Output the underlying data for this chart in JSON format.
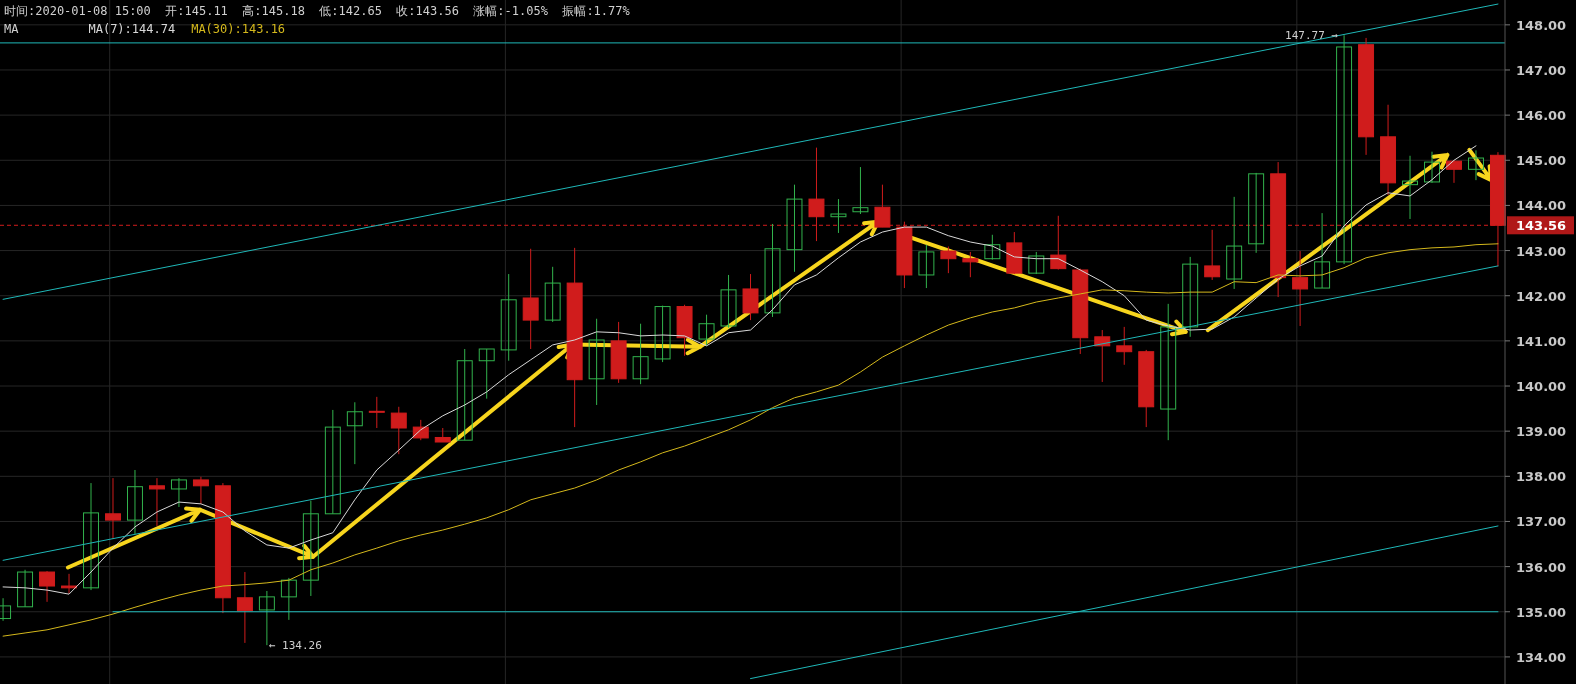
{
  "chart_data": {
    "type": "candlestick",
    "title": "时间:2020-01-08 15:00  开:145.11  高:145.18  低:142.65  收:143.56  涨幅:-1.05%  振幅:1.77%",
    "legend_title": "MA",
    "legend": "top left",
    "tick_labels": "y",
    "grid": true,
    "ylim": [
      133.4,
      148.55
    ],
    "yticks": [
      {
        "value": 134,
        "label": "134.00"
      },
      {
        "value": 135,
        "label": "135.00"
      },
      {
        "value": 136,
        "label": "136.00"
      },
      {
        "value": 137,
        "label": "137.00"
      },
      {
        "value": 138,
        "label": "138.00"
      },
      {
        "value": 139,
        "label": "139.00"
      },
      {
        "value": 140,
        "label": "140.00"
      },
      {
        "value": 141,
        "label": "141.00"
      },
      {
        "value": 142,
        "label": "142.00"
      },
      {
        "value": 143,
        "label": "143.00"
      },
      {
        "value": 144,
        "label": "144.00"
      },
      {
        "value": 145,
        "label": "145.00"
      },
      {
        "value": 146,
        "label": "146.00"
      },
      {
        "value": 147,
        "label": "147.00"
      },
      {
        "value": 148,
        "label": "148.00"
      }
    ],
    "categories": [
      null,
      null,
      null,
      null,
      null,
      null,
      null,
      null,
      null,
      null,
      null,
      null,
      null,
      null,
      null,
      null,
      null,
      null,
      null,
      null,
      null,
      null,
      null,
      null,
      null,
      null,
      null,
      null,
      null,
      null,
      null,
      null,
      null,
      null,
      null,
      null,
      null,
      null,
      null,
      null,
      null,
      null,
      null,
      null,
      null,
      null,
      null,
      null,
      null,
      null,
      null,
      null,
      null,
      null,
      null,
      null,
      null,
      null,
      null,
      null,
      null,
      null,
      null,
      null,
      null,
      null,
      null,
      null,
      null
    ],
    "ohlc": [
      [
        134.85,
        135.3,
        134.8,
        135.13
      ],
      [
        135.11,
        135.93,
        135.11,
        135.88
      ],
      [
        135.88,
        135.9,
        135.22,
        135.57
      ],
      [
        135.57,
        135.84,
        135.4,
        135.53
      ],
      [
        135.53,
        137.85,
        135.48,
        137.19
      ],
      [
        137.17,
        137.96,
        136.61,
        137.03
      ],
      [
        137.03,
        138.14,
        136.72,
        137.77
      ],
      [
        137.79,
        137.96,
        136.9,
        137.72
      ],
      [
        137.72,
        137.96,
        137.32,
        137.92
      ],
      [
        137.92,
        137.99,
        137.39,
        137.79
      ],
      [
        137.79,
        137.85,
        134.97,
        135.31
      ],
      [
        135.31,
        135.88,
        134.31,
        135.02
      ],
      [
        135.04,
        135.46,
        134.26,
        135.33
      ],
      [
        135.33,
        135.75,
        134.82,
        135.7
      ],
      [
        135.7,
        137.46,
        135.35,
        137.17
      ],
      [
        137.17,
        139.47,
        137.17,
        139.09
      ],
      [
        139.12,
        139.64,
        138.27,
        139.43
      ],
      [
        139.44,
        139.76,
        139.07,
        139.42
      ],
      [
        139.4,
        139.54,
        138.49,
        139.07
      ],
      [
        139.09,
        139.25,
        138.8,
        138.85
      ],
      [
        138.86,
        139.07,
        138.76,
        138.76
      ],
      [
        138.8,
        140.82,
        138.8,
        140.56
      ],
      [
        140.56,
        140.82,
        139.72,
        140.82
      ],
      [
        140.8,
        142.48,
        140.56,
        141.91
      ],
      [
        141.95,
        143.04,
        140.82,
        141.46
      ],
      [
        141.46,
        142.64,
        141.42,
        142.28
      ],
      [
        142.28,
        143.06,
        139.09,
        140.14
      ],
      [
        140.16,
        141.49,
        139.58,
        141.02
      ],
      [
        141.0,
        141.42,
        140.07,
        140.16
      ],
      [
        140.16,
        141.38,
        140.04,
        140.65
      ],
      [
        140.6,
        141.78,
        140.53,
        141.76
      ],
      [
        141.76,
        141.8,
        140.67,
        141.07
      ],
      [
        141.04,
        141.58,
        140.89,
        141.38
      ],
      [
        141.33,
        142.46,
        141.29,
        142.13
      ],
      [
        142.15,
        142.48,
        141.46,
        141.62
      ],
      [
        141.62,
        143.59,
        141.53,
        143.04
      ],
      [
        143.02,
        144.46,
        142.53,
        144.14
      ],
      [
        144.14,
        145.28,
        143.21,
        143.75
      ],
      [
        143.75,
        144.14,
        143.39,
        143.81
      ],
      [
        143.86,
        144.85,
        143.81,
        143.95
      ],
      [
        143.96,
        144.46,
        143.52,
        143.52
      ],
      [
        143.52,
        143.64,
        142.17,
        142.46
      ],
      [
        142.46,
        143.13,
        142.17,
        142.97
      ],
      [
        142.99,
        143.09,
        142.5,
        142.82
      ],
      [
        142.82,
        142.97,
        142.41,
        142.75
      ],
      [
        142.82,
        143.35,
        142.8,
        143.13
      ],
      [
        143.17,
        143.41,
        142.48,
        142.5
      ],
      [
        142.5,
        142.97,
        142.48,
        142.88
      ],
      [
        142.9,
        143.77,
        142.58,
        142.6
      ],
      [
        142.57,
        142.6,
        140.71,
        141.07
      ],
      [
        141.09,
        141.24,
        140.09,
        140.89
      ],
      [
        140.89,
        141.31,
        140.47,
        140.76
      ],
      [
        140.76,
        140.8,
        139.09,
        139.54
      ],
      [
        139.49,
        141.82,
        138.8,
        141.31
      ],
      [
        141.31,
        142.86,
        141.09,
        142.7
      ],
      [
        142.66,
        143.46,
        142.35,
        142.42
      ],
      [
        142.37,
        144.19,
        142.15,
        143.1
      ],
      [
        143.15,
        144.72,
        142.95,
        144.7
      ],
      [
        144.7,
        144.96,
        141.97,
        142.4
      ],
      [
        142.4,
        142.99,
        141.33,
        142.15
      ],
      [
        142.17,
        143.83,
        142.17,
        142.75
      ],
      [
        142.75,
        147.77,
        142.7,
        147.51
      ],
      [
        147.56,
        147.71,
        145.12,
        145.52
      ],
      [
        145.52,
        146.23,
        144.23,
        144.5
      ],
      [
        144.46,
        145.1,
        143.7,
        144.54
      ],
      [
        144.52,
        145.19,
        144.5,
        144.96
      ],
      [
        144.98,
        145.0,
        144.5,
        144.8
      ],
      [
        144.8,
        145.22,
        144.56,
        145.05
      ],
      [
        145.11,
        145.18,
        142.65,
        143.56
      ]
    ],
    "colors": [
      "#32b34d",
      "#32b34d",
      "#d01c1c",
      "#d01c1c",
      "#32b34d",
      "#d01c1c",
      "#32b34d",
      "#d01c1c",
      "#32b34d",
      "#d01c1c",
      "#d01c1c",
      "#d01c1c",
      "#32b34d",
      "#32b34d",
      "#32b34d",
      "#32b34d",
      "#32b34d",
      "#d01c1c",
      "#d01c1c",
      "#d01c1c",
      "#d01c1c",
      "#32b34d",
      "#32b34d",
      "#32b34d",
      "#d01c1c",
      "#32b34d",
      "#d01c1c",
      "#32b34d",
      "#d01c1c",
      "#32b34d",
      "#32b34d",
      "#d01c1c",
      "#32b34d",
      "#32b34d",
      "#d01c1c",
      "#32b34d",
      "#32b34d",
      "#d01c1c",
      "#32b34d",
      "#32b34d",
      "#d01c1c",
      "#d01c1c",
      "#32b34d",
      "#d01c1c",
      "#d01c1c",
      "#32b34d",
      "#d01c1c",
      "#32b34d",
      "#d01c1c",
      "#d01c1c",
      "#d01c1c",
      "#d01c1c",
      "#d01c1c",
      "#32b34d",
      "#32b34d",
      "#d01c1c",
      "#32b34d",
      "#32b34d",
      "#d01c1c",
      "#d01c1c",
      "#32b34d",
      "#32b34d",
      "#d01c1c",
      "#d01c1c",
      "#32b34d",
      "#32b34d",
      "#d01c1c",
      "#32b34d",
      "#d01c1c"
    ],
    "series": [
      {
        "type": "line",
        "name": "MA(7):144.74",
        "color": "#d8d8d8",
        "values": [
          135.55,
          135.53,
          135.48,
          135.39,
          135.88,
          136.41,
          136.88,
          137.21,
          137.43,
          137.39,
          137.21,
          136.79,
          136.48,
          136.41,
          136.59,
          136.75,
          137.48,
          138.14,
          138.58,
          139.03,
          139.34,
          139.58,
          139.87,
          140.25,
          140.58,
          140.91,
          141.02,
          141.2,
          141.18,
          141.11,
          141.13,
          141.11,
          140.89,
          141.18,
          141.24,
          141.69,
          142.24,
          142.46,
          142.84,
          143.19,
          143.41,
          143.52,
          143.52,
          143.33,
          143.19,
          143.1,
          142.86,
          142.82,
          142.82,
          142.57,
          142.31,
          142.0,
          141.46,
          141.33,
          141.24,
          141.26,
          141.53,
          141.95,
          142.37,
          142.66,
          142.88,
          143.55,
          144.01,
          144.28,
          144.21,
          144.57,
          145.0,
          145.32,
          null
        ]
      },
      {
        "type": "line",
        "name": "MA(30):143.16",
        "color": "#d4b81c",
        "values": [
          134.46,
          134.53,
          134.6,
          134.71,
          134.82,
          134.95,
          135.1,
          135.24,
          135.37,
          135.48,
          135.57,
          135.6,
          135.64,
          135.7,
          135.93,
          136.08,
          136.26,
          136.41,
          136.57,
          136.7,
          136.81,
          136.94,
          137.08,
          137.26,
          137.48,
          137.61,
          137.74,
          137.92,
          138.14,
          138.32,
          138.52,
          138.67,
          138.85,
          139.03,
          139.25,
          139.52,
          139.74,
          139.87,
          140.02,
          140.31,
          140.64,
          140.89,
          141.13,
          141.35,
          141.51,
          141.64,
          141.73,
          141.86,
          141.95,
          142.04,
          142.13,
          142.11,
          142.08,
          142.06,
          142.08,
          142.08,
          142.31,
          142.29,
          142.46,
          142.44,
          142.46,
          142.62,
          142.84,
          142.95,
          143.02,
          143.06,
          143.08,
          143.13,
          143.15
        ]
      },
      {
        "type": "line",
        "color": "#1fb8b8",
        "values": [
          141.92,
          null,
          null,
          null,
          null,
          null,
          null,
          null,
          null,
          null,
          null,
          null,
          null,
          null,
          null,
          null,
          null,
          null,
          null,
          null,
          null,
          null,
          null,
          null,
          null,
          null,
          null,
          null,
          null,
          null,
          null,
          null,
          null,
          null,
          null,
          null,
          null,
          null,
          null,
          null,
          null,
          null,
          null,
          null,
          null,
          null,
          null,
          null,
          null,
          null,
          null,
          null,
          null,
          null,
          null,
          null,
          null,
          null,
          null,
          null,
          null,
          null,
          null,
          null,
          null,
          null,
          null,
          null,
          148.46
        ]
      },
      {
        "type": "line",
        "color": "#1fb8b8",
        "values": [
          136.14,
          null,
          null,
          null,
          null,
          null,
          null,
          null,
          null,
          null,
          null,
          null,
          null,
          null,
          null,
          null,
          null,
          null,
          null,
          null,
          null,
          null,
          null,
          null,
          null,
          null,
          null,
          null,
          null,
          null,
          null,
          null,
          null,
          null,
          null,
          null,
          null,
          null,
          null,
          null,
          null,
          null,
          null,
          null,
          null,
          null,
          null,
          null,
          null,
          null,
          null,
          null,
          null,
          null,
          null,
          null,
          null,
          null,
          null,
          null,
          null,
          null,
          null,
          null,
          null,
          null,
          null,
          null,
          142.66
        ]
      },
      {
        "type": "line",
        "color": "#1fb8b8",
        "values": [
          null,
          null,
          null,
          null,
          null,
          null,
          null,
          null,
          null,
          null,
          null,
          null,
          null,
          null,
          null,
          null,
          null,
          null,
          null,
          null,
          null,
          null,
          null,
          null,
          null,
          null,
          null,
          null,
          null,
          null,
          null,
          null,
          null,
          null,
          133.52,
          null,
          null,
          null,
          null,
          null,
          null,
          null,
          null,
          null,
          null,
          null,
          null,
          null,
          null,
          null,
          null,
          null,
          null,
          null,
          null,
          null,
          null,
          null,
          null,
          null,
          null,
          null,
          null,
          null,
          null,
          null,
          null,
          null,
          136.9
        ]
      },
      {
        "type": "line",
        "color": "#1fb8b8",
        "values": [
          null,
          null,
          null,
          null,
          null,
          135.0,
          null,
          null,
          null,
          null,
          null,
          null,
          null,
          null,
          null,
          null,
          null,
          null,
          null,
          null,
          null,
          null,
          null,
          null,
          null,
          null,
          null,
          null,
          null,
          null,
          null,
          null,
          null,
          null,
          null,
          null,
          null,
          null,
          null,
          null,
          null,
          null,
          null,
          null,
          null,
          null,
          null,
          null,
          null,
          null,
          null,
          null,
          null,
          null,
          null,
          null,
          null,
          null,
          null,
          null,
          null,
          null,
          null,
          null,
          null,
          null,
          null,
          null,
          135.0
        ]
      }
    ],
    "ref_lines": [
      {
        "axis": "y",
        "value": 147.6,
        "color": "#1fb8b8",
        "line_style": "solid"
      },
      {
        "axis": "y",
        "value": 143.56,
        "label": "143.56",
        "color": "#d01c1c",
        "line_style": "dashed"
      }
    ],
    "annotations": [
      "147.77 →",
      "← 134.26"
    ]
  }
}
